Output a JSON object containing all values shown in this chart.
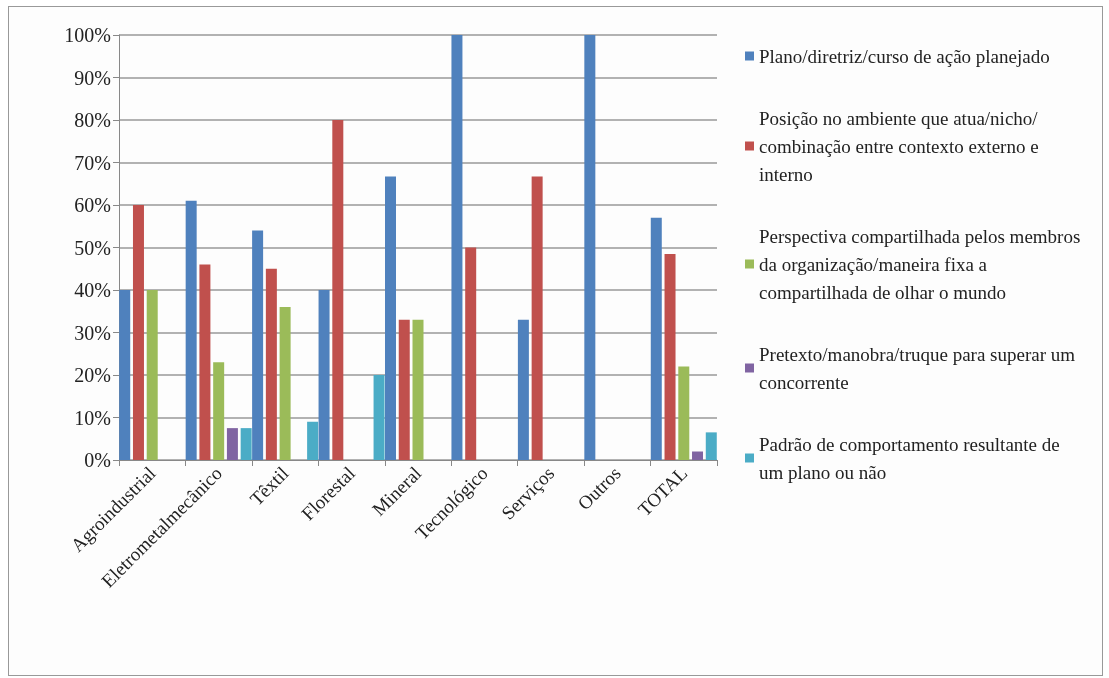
{
  "chart_data": {
    "type": "bar",
    "categories": [
      "Agroindustrial",
      "Eletrometalmecânico",
      "Têxtil",
      "Florestal",
      "Mineral",
      "Tecnológico",
      "Serviços",
      "Outros",
      "TOTAL"
    ],
    "series": [
      {
        "name": "Plano/diretriz/curso de ação planejado",
        "color": "#4f81bd",
        "values": [
          40,
          61,
          54,
          40,
          66.7,
          100,
          33,
          100,
          57
        ]
      },
      {
        "name": "Posição no ambiente que atua/nicho/combinação entre contexto externo e interno",
        "color": "#c0504d",
        "values": [
          60,
          46,
          45,
          80,
          33,
          50,
          66.7,
          0,
          48.5
        ]
      },
      {
        "name": "Perspectiva compartilhada pelos membros da organização/maneira fixa a compartilhada de olhar o mundo",
        "color": "#9bbb59",
        "values": [
          40,
          23,
          36,
          0,
          33,
          0,
          0,
          0,
          22
        ]
      },
      {
        "name": "Pretexto/manobra/truque para superar um concorrente",
        "color": "#8064a2",
        "values": [
          0,
          7.5,
          0,
          0,
          0,
          0,
          0,
          0,
          2
        ]
      },
      {
        "name": "Padrão de comportamento resultante de um plano ou não",
        "color": "#4bacc6",
        "values": [
          0,
          7.5,
          9,
          20,
          0,
          0,
          0,
          0,
          6.5
        ]
      }
    ],
    "ylim": [
      0,
      100
    ],
    "yticks": [
      {
        "value": 0,
        "label": "0%"
      },
      {
        "value": 10,
        "label": "10%"
      },
      {
        "value": 20,
        "label": "20%"
      },
      {
        "value": 30,
        "label": "30%"
      },
      {
        "value": 40,
        "label": "40%"
      },
      {
        "value": 50,
        "label": "50%"
      },
      {
        "value": 60,
        "label": "60%"
      },
      {
        "value": 70,
        "label": "70%"
      },
      {
        "value": 80,
        "label": "80%"
      },
      {
        "value": 90,
        "label": "90%"
      },
      {
        "value": 100,
        "label": "100%"
      }
    ],
    "grid": "y",
    "legend": "right"
  }
}
